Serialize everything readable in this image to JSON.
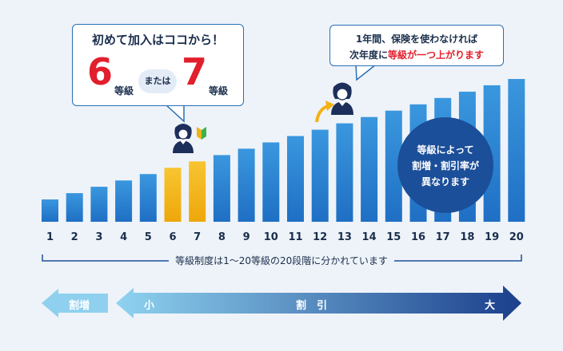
{
  "callout_left": {
    "title": "初めて加入はココから！",
    "option_a_number": "6",
    "option_a_unit": "等級",
    "or_label": "または",
    "option_b_number": "7",
    "option_b_unit": "等級"
  },
  "callout_right": {
    "line1": "1年間、保険を使わなければ",
    "line2_prefix": "次年度に",
    "line2_highlight": "等級が一つ上がります"
  },
  "circle_note": {
    "line1": "等級によって",
    "line2": "割増・割引率が",
    "line3": "異なります"
  },
  "bracket_label": "等級制度は1〜20等級の20段階に分かれています",
  "arrow": {
    "surcharge_label": "割増",
    "small_label": "小",
    "discount_label": "割　引",
    "large_label": "大"
  },
  "colors": {
    "bar": "#2880d0",
    "highlight_bar": "#f3b214",
    "navy": "#1c4f99",
    "red": "#e21f2c",
    "surcharge_arrow": "#8fd0ef",
    "discount_arrow_start": "#8fd3f0",
    "discount_arrow_end": "#1b3f8c"
  },
  "chart_data": {
    "type": "bar",
    "categories": [
      "1",
      "2",
      "3",
      "4",
      "5",
      "6",
      "7",
      "8",
      "9",
      "10",
      "11",
      "12",
      "13",
      "14",
      "15",
      "16",
      "17",
      "18",
      "19",
      "20"
    ],
    "values": [
      1,
      2,
      3,
      4,
      5,
      6,
      7,
      8,
      9,
      10,
      11,
      12,
      13,
      14,
      15,
      16,
      17,
      18,
      19,
      20
    ],
    "highlighted": [
      "6",
      "7"
    ],
    "icons": {
      "beginner_user": "user-with-beginner-mark-icon",
      "upgraded_user": "user-upgraded-icon",
      "up_arrow": "curved-up-arrow-icon"
    }
  }
}
